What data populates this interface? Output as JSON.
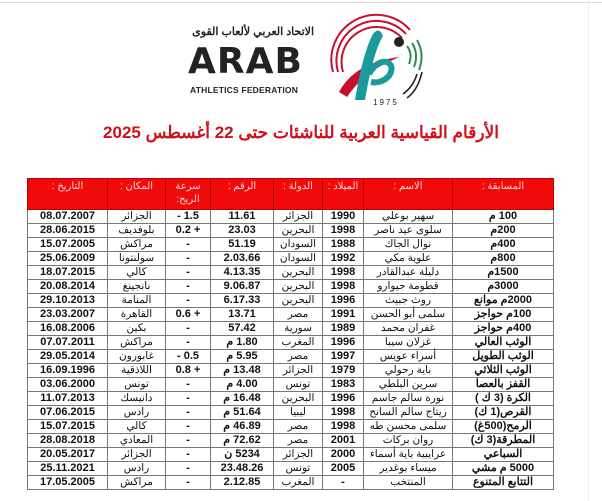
{
  "logo": {
    "arabic": "الاتحاد العربي لألعاب القوى",
    "name": "ARAB",
    "subtitle": "ATHLETICS FEDERATION",
    "year": "1975",
    "colors": {
      "red": "#c8102e",
      "teal": "#1a9a9a",
      "green": "#2e8b57",
      "black": "#222222"
    }
  },
  "title": "الأرقام القياسية العربية للناشئات حتى 22 أغسطس 2025",
  "table": {
    "header_color": "#f00a0a",
    "headers": [
      "المسابقة :",
      "الاسم :",
      "الميلاد :",
      "الدولة :",
      "الرقم :",
      "سرعة الريح:",
      "المكان :",
      "التاريخ :"
    ],
    "rows": [
      [
        "100 م",
        "سهير بوعلي",
        "1990",
        "الجزائر",
        "11.61",
        "1.5 -",
        "الجزائر",
        "08.07.2007"
      ],
      [
        "200م",
        "سلوى عيد ناصر",
        "1998",
        "البحرين",
        "23.03",
        "+ 0.2",
        "بلوفديف",
        "28.06.2015"
      ],
      [
        "400م",
        "نوال الجاك",
        "1988",
        "السودان",
        "51.19",
        "-",
        "مراكش",
        "15.07.2005"
      ],
      [
        "800م",
        "علوية مكي",
        "1992",
        "السودان",
        "2.03.66",
        "-",
        "سولنتونا",
        "25.06.2009"
      ],
      [
        "1500م",
        "دليلة عبدالقادر",
        "1998",
        "البحرين",
        "4.13.35",
        "-",
        "كالي",
        "18.07.2015"
      ],
      [
        "3000م",
        "قطومة جيوارو",
        "1998",
        "البحرين",
        "9.06.87",
        "-",
        "نانجينغ",
        "20.08.2014"
      ],
      [
        "2000م موانع",
        "روث جبيث",
        "1996",
        "البحرين",
        "6.17.33",
        "-",
        "المنامة",
        "29.10.2013"
      ],
      [
        "100م حواجز",
        "سلمى أبو الحسن",
        "1991",
        "مصر",
        "13.71",
        "+ 0.6",
        "القاهرة",
        "23.03.2007"
      ],
      [
        "400م حواجز",
        "غفران محمد",
        "1989",
        "سورية",
        "57.42",
        "-",
        "بكين",
        "16.08.2006"
      ],
      [
        "الوثب العالي",
        "غزلان سيبا",
        "1996",
        "المغرب",
        "1.80 م",
        "-",
        "مراكش",
        "07.07.2011"
      ],
      [
        "الوثب الطويل",
        "أسراء عويس",
        "1997",
        "مصر",
        "5.95 م",
        "0.5 -",
        "غابورون",
        "29.05.2014"
      ],
      [
        "الوثب الثلاثي",
        "باية رحولي",
        "1979",
        "الجزائر",
        "13.48 م",
        "+ 0.8",
        "اللاذقية",
        "16.09.1996"
      ],
      [
        "القفز بالعصا",
        "سرين البلطي",
        "1983",
        "تونس",
        "4.00 م",
        "-",
        "تونس",
        "03.06.2000"
      ],
      [
        "الكرة (3 ك )",
        "نورة سالم جاسم",
        "1996",
        "البحرين",
        "16.48 م",
        "-",
        "دانيسك",
        "11.07.2013"
      ],
      [
        "القرص(1 ك)",
        "ريتاج سالم السانح",
        "1998",
        "ليبيا",
        "51.64 م",
        "-",
        "رادس",
        "07.06.2015"
      ],
      [
        "الرمح(500غ)",
        "سلمى محسن طه",
        "1998",
        "مصر",
        "46.89 م",
        "-",
        "كالي",
        "15.07.2015"
      ],
      [
        "المطرقة(3 ك)",
        "روان بركات",
        "2001",
        "مصر",
        "72.62 م",
        "-",
        "المعادي",
        "28.08.2018"
      ],
      [
        "السباعي",
        "عرايبية باية أسماء",
        "2000",
        "الجزائر",
        "5234 ن",
        "-",
        "الجزائر",
        "20.05.2017"
      ],
      [
        "5000 م مشي",
        "ميساء بوغدير",
        "2005",
        "تونس",
        "23.48.26",
        "-",
        "رادس",
        "25.11.2021"
      ],
      [
        "التتابع المتنوع",
        "المنتخب",
        "-",
        "المغرب",
        "2.12.85",
        "-",
        "مراكش",
        "17.05.2005"
      ]
    ]
  }
}
